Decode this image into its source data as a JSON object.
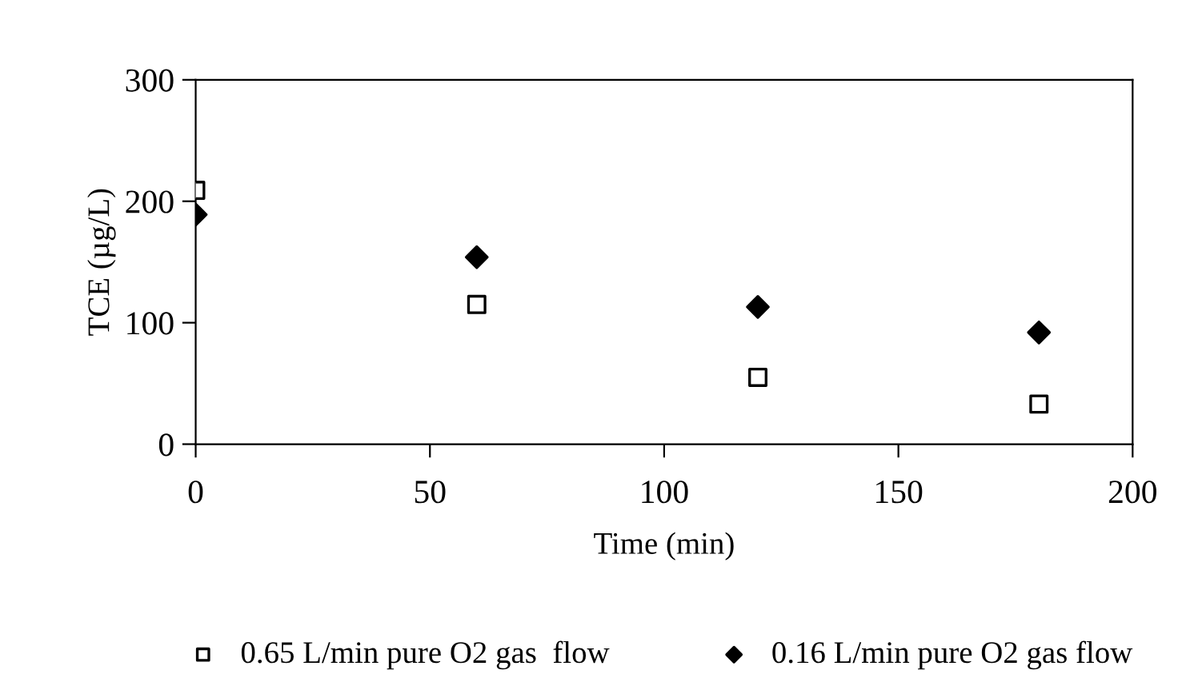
{
  "chart_data": {
    "type": "scatter",
    "xlabel": "Time (min)",
    "ylabel": "TCE (µg/L)",
    "x": [
      0,
      60,
      120,
      180
    ],
    "series": [
      {
        "name": "0.65 L/min pure O2 gas  flow",
        "color": "#000000",
        "marker": "square",
        "values": [
          209,
          115,
          55,
          33
        ]
      },
      {
        "name": "0.16 L/min pure O2 gas flow",
        "color": "#000000",
        "marker": "diamond",
        "values": [
          189,
          154,
          113,
          92
        ]
      }
    ],
    "xlim": [
      0,
      200
    ],
    "xticks": [
      0,
      50,
      100,
      150,
      200
    ],
    "ylim": [
      0,
      300
    ],
    "yticks": [
      0,
      100,
      200,
      300
    ],
    "grid": false,
    "legend": "bottom"
  }
}
